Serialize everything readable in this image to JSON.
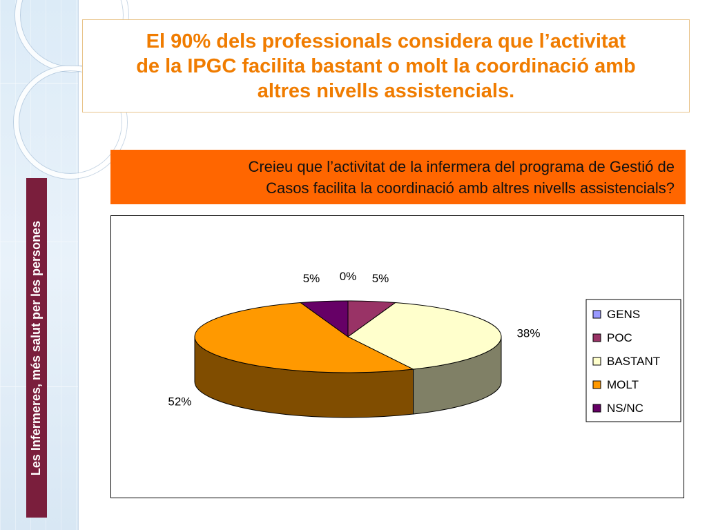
{
  "sidebar": {
    "vertical_label": "Les Infermeres, més salut per les persones"
  },
  "title": {
    "line1": "El 90% dels professionals considera que l’activitat",
    "line2": "de la IPGC facilita bastant o molt la coordinació amb",
    "line3": "altres nivells assistencials."
  },
  "question": {
    "line1": "Creieu que l’activitat de la infermera del programa de Gestió de",
    "line2": "Casos facilita la coordinació amb altres nivells assistencials?"
  },
  "colors": {
    "title": "#f07c00",
    "question_bg": "#ff6600",
    "sidebar_label_bg": "#7a1e3c"
  },
  "chart_data": {
    "type": "pie",
    "style": "3d",
    "categories": [
      "GENS",
      "POC",
      "BASTANT",
      "MOLT",
      "NS/NC"
    ],
    "values": [
      0,
      5,
      38,
      52,
      5
    ],
    "labels": [
      "0%",
      "5%",
      "38%",
      "52%",
      "5%"
    ],
    "colors": [
      "#9999ff",
      "#993366",
      "#ffffcc",
      "#ff9900",
      "#660066"
    ],
    "legend_position": "right"
  }
}
